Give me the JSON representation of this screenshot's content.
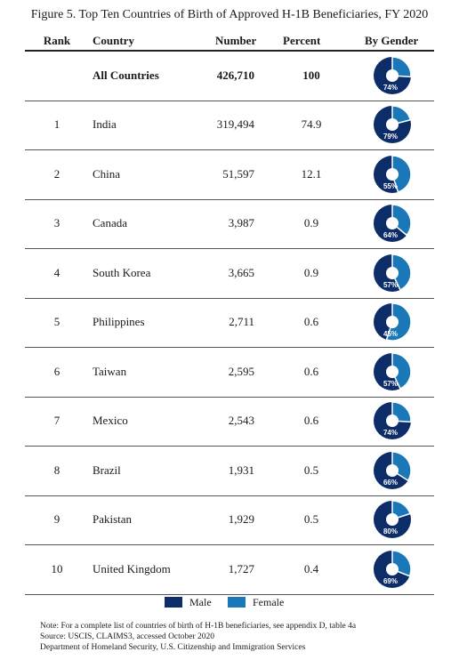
{
  "title": "Figure 5. Top Ten Countries of Birth of Approved H-1B Beneficiaries, FY 2020",
  "headers": {
    "rank": "Rank",
    "country": "Country",
    "number": "Number",
    "percent": "Percent",
    "gender": "By Gender"
  },
  "colors": {
    "male": "#0d2d69",
    "female": "#1a78b8"
  },
  "legend": {
    "male": "Male",
    "female": "Female"
  },
  "notes": [
    "Note: For a complete list of countries of birth of H-1B beneficiaries, see appendix D, table 4a",
    "Source: USCIS, CLAIMS3, accessed October 2020",
    "Department of Homeland Security, U.S. Citizenship and Immigration Services"
  ],
  "chart_data": {
    "type": "table",
    "columns": [
      "Rank",
      "Country",
      "Number",
      "Percent",
      "By Gender"
    ],
    "rows": [
      {
        "rank": "",
        "country": "All Countries",
        "number": "426,710",
        "percent": "100",
        "male_pct": 74,
        "male_label": "74%"
      },
      {
        "rank": "1",
        "country": "India",
        "number": "319,494",
        "percent": "74.9",
        "male_pct": 79,
        "male_label": "79%"
      },
      {
        "rank": "2",
        "country": "China",
        "number": "51,597",
        "percent": "12.1",
        "male_pct": 55,
        "male_label": "55%"
      },
      {
        "rank": "3",
        "country": "Canada",
        "number": "3,987",
        "percent": "0.9",
        "male_pct": 64,
        "male_label": "64%"
      },
      {
        "rank": "4",
        "country": "South Korea",
        "number": "3,665",
        "percent": "0.9",
        "male_pct": 57,
        "male_label": "57%"
      },
      {
        "rank": "5",
        "country": "Philippines",
        "number": "2,711",
        "percent": "0.6",
        "male_pct": 45,
        "male_label": "45%"
      },
      {
        "rank": "6",
        "country": "Taiwan",
        "number": "2,595",
        "percent": "0.6",
        "male_pct": 57,
        "male_label": "57%"
      },
      {
        "rank": "7",
        "country": "Mexico",
        "number": "2,543",
        "percent": "0.6",
        "male_pct": 74,
        "male_label": "74%"
      },
      {
        "rank": "8",
        "country": "Brazil",
        "number": "1,931",
        "percent": "0.5",
        "male_pct": 66,
        "male_label": "66%"
      },
      {
        "rank": "9",
        "country": "Pakistan",
        "number": "1,929",
        "percent": "0.5",
        "male_pct": 80,
        "male_label": "80%"
      },
      {
        "rank": "10",
        "country": "United Kingdom",
        "number": "1,727",
        "percent": "0.4",
        "male_pct": 69,
        "male_label": "69%"
      }
    ]
  }
}
